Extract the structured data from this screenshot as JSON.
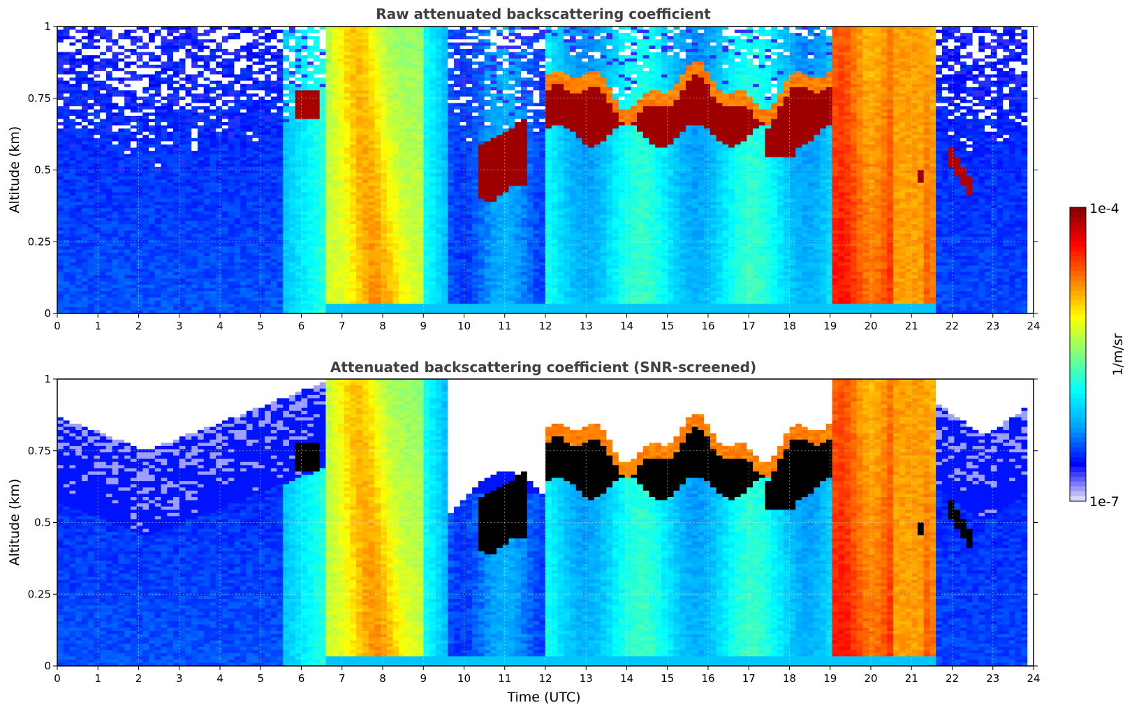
{
  "chart_data": [
    {
      "type": "heatmap",
      "title": "Raw attenuated backscattering coefficient",
      "xlabel": "",
      "ylabel": "Altitude (km)",
      "xlim": [
        0,
        24
      ],
      "ylim": [
        0,
        1
      ],
      "x_ticks": [
        "0",
        "1",
        "2",
        "3",
        "4",
        "5",
        "6",
        "7",
        "8",
        "9",
        "10",
        "11",
        "12",
        "13",
        "14",
        "15",
        "16",
        "17",
        "18",
        "19",
        "20",
        "21",
        "22",
        "23",
        "24"
      ],
      "y_ticks": [
        "0",
        "0.25",
        "0.5",
        "0.75",
        "1"
      ],
      "grid": true,
      "regions": [
        {
          "t": [
            0,
            6.6
          ],
          "level": 0.15,
          "noise_above_km": 0.55
        },
        {
          "t": [
            6.6,
            9.6
          ],
          "level": 0.62,
          "feature": "tilted yellow-orange aerosol layer, 7.2-8.5"
        },
        {
          "t": [
            9.6,
            12.0
          ],
          "level": 0.25,
          "cloud_km": [
            0.45,
            0.62
          ],
          "cloud_t": [
            10.3,
            11.5
          ]
        },
        {
          "t": [
            12.0,
            19.0
          ],
          "level": 0.42,
          "cloud_km": [
            0.6,
            0.85
          ],
          "cloud_top_km": 0.82
        },
        {
          "t": [
            19.0,
            21.5
          ],
          "level": 0.88,
          "feature": "strong orange-red boundary layer"
        },
        {
          "t": [
            21.5,
            23.8
          ],
          "level": 0.15,
          "noise_above_km": 0.55,
          "cloud_t": [
            21.9,
            22.4
          ],
          "cloud_km": [
            0.42,
            0.56
          ]
        }
      ]
    },
    {
      "type": "heatmap",
      "title": "Attenuated backscattering coefficient (SNR-screened)",
      "xlabel": "Time (UTC)",
      "ylabel": "Altitude (km)",
      "xlim": [
        0,
        24
      ],
      "ylim": [
        0,
        1
      ],
      "x_ticks": [
        "0",
        "1",
        "2",
        "3",
        "4",
        "5",
        "6",
        "7",
        "8",
        "9",
        "10",
        "11",
        "12",
        "13",
        "14",
        "15",
        "16",
        "17",
        "18",
        "19",
        "20",
        "21",
        "22",
        "23",
        "24"
      ],
      "y_ticks": [
        "0",
        "0.25",
        "0.5",
        "0.75",
        "1"
      ],
      "grid": true,
      "screened_fill": "#ffffff",
      "saturated_fill": "#000000"
    }
  ],
  "colorbar": {
    "label": "1/m/sr",
    "min_label": "1e-7",
    "max_label": "1e-4",
    "colormap": "jet",
    "colors": [
      "#e8e8ff",
      "#0000ff",
      "#00a0ff",
      "#00ffff",
      "#80ff80",
      "#ffff00",
      "#ff8000",
      "#ff0000",
      "#800000"
    ]
  }
}
